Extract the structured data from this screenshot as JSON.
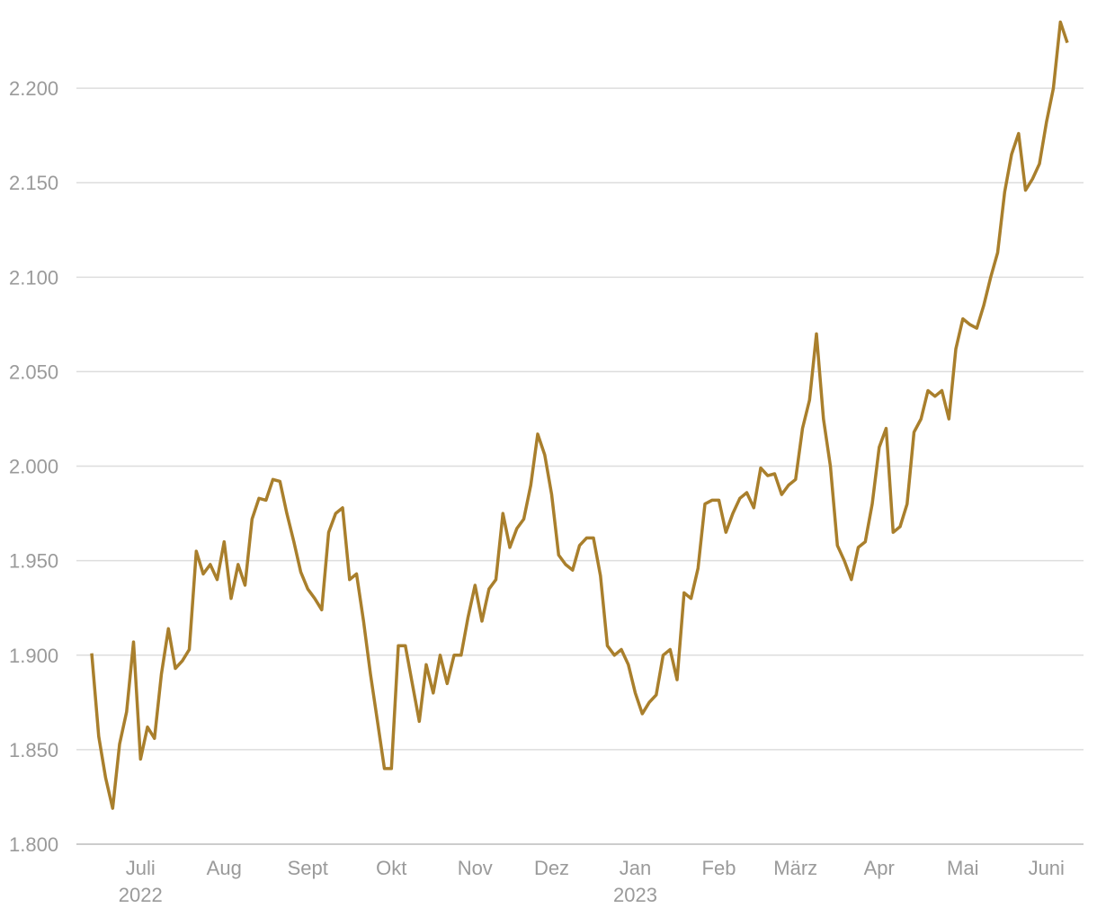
{
  "chart_data": {
    "type": "line",
    "categories": [
      null,
      null,
      null,
      null,
      null,
      null,
      null,
      "Juli 2022",
      null,
      null,
      null,
      null,
      null,
      null,
      null,
      null,
      null,
      null,
      null,
      "Aug",
      null,
      null,
      null,
      null,
      null,
      null,
      null,
      null,
      null,
      null,
      null,
      "Sept",
      null,
      null,
      null,
      null,
      null,
      null,
      null,
      null,
      null,
      null,
      null,
      "Okt",
      null,
      null,
      null,
      null,
      null,
      null,
      null,
      null,
      null,
      null,
      null,
      "Nov",
      null,
      null,
      null,
      null,
      null,
      null,
      null,
      null,
      null,
      null,
      "Dez",
      null,
      null,
      null,
      null,
      null,
      null,
      null,
      null,
      null,
      null,
      null,
      "Jan 2023",
      null,
      null,
      null,
      null,
      null,
      null,
      null,
      null,
      null,
      null,
      null,
      "Feb",
      null,
      null,
      null,
      null,
      null,
      null,
      null,
      null,
      null,
      null,
      "März",
      null,
      null,
      null,
      null,
      null,
      null,
      null,
      null,
      null,
      null,
      null,
      "Apr",
      null,
      null,
      null,
      null,
      null,
      null,
      null,
      null,
      null,
      null,
      null,
      "Mai",
      null,
      null,
      null,
      null,
      null,
      null,
      null,
      null,
      null,
      null,
      null,
      "Juni",
      null,
      null,
      null
    ],
    "series": [
      {
        "color": "#a97f2c",
        "values": [
          1.901,
          1.857,
          1.835,
          1.819,
          1.853,
          1.87,
          1.907,
          1.845,
          1.862,
          1.856,
          1.89,
          1.914,
          1.893,
          1.897,
          1.903,
          1.955,
          1.943,
          1.948,
          1.94,
          1.96,
          1.93,
          1.948,
          1.937,
          1.972,
          1.983,
          1.982,
          1.993,
          1.992,
          1.975,
          1.96,
          1.944,
          1.935,
          1.93,
          1.924,
          1.965,
          1.975,
          1.978,
          1.94,
          1.943,
          1.918,
          1.89,
          1.865,
          1.84,
          1.84,
          1.905,
          1.905,
          1.885,
          1.865,
          1.895,
          1.88,
          1.9,
          1.885,
          1.9,
          1.9,
          1.92,
          1.937,
          1.918,
          1.935,
          1.94,
          1.975,
          1.957,
          1.967,
          1.972,
          1.99,
          2.017,
          2.006,
          1.985,
          1.953,
          1.948,
          1.945,
          1.958,
          1.962,
          1.962,
          1.942,
          1.905,
          1.9,
          1.903,
          1.895,
          1.88,
          1.869,
          1.875,
          1.879,
          1.9,
          1.903,
          1.887,
          1.933,
          1.93,
          1.946,
          1.98,
          1.982,
          1.982,
          1.965,
          1.975,
          1.983,
          1.986,
          1.978,
          1.999,
          1.995,
          1.996,
          1.985,
          1.99,
          1.993,
          2.02,
          2.035,
          2.07,
          2.025,
          2.0,
          1.958,
          1.95,
          1.94,
          1.957,
          1.96,
          1.98,
          2.01,
          2.02,
          1.965,
          1.968,
          1.98,
          2.018,
          2.025,
          2.04,
          2.037,
          2.04,
          2.025,
          2.062,
          2.078,
          2.075,
          2.073,
          2.085,
          2.1,
          2.113,
          2.145,
          2.165,
          2.176,
          2.146,
          2.152,
          2.16,
          2.182,
          2.2,
          2.235,
          2.224
        ]
      }
    ],
    "ylim": [
      1.8,
      2.24
    ],
    "yticks": [
      {
        "value": 1.8,
        "label": "1.800"
      },
      {
        "value": 1.85,
        "label": "1.850"
      },
      {
        "value": 1.9,
        "label": "1.900"
      },
      {
        "value": 1.95,
        "label": "1.950"
      },
      {
        "value": 2.0,
        "label": "2.000"
      },
      {
        "value": 2.05,
        "label": "2.050"
      },
      {
        "value": 2.1,
        "label": "2.100"
      },
      {
        "value": 2.15,
        "label": "2.150"
      },
      {
        "value": 2.2,
        "label": "2.200"
      }
    ],
    "grid": true
  }
}
